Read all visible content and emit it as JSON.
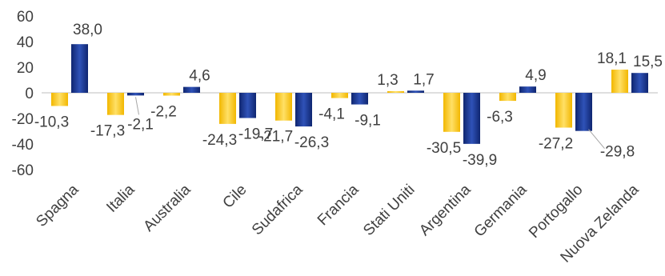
{
  "chart_data": {
    "type": "bar",
    "categories": [
      "Spagna",
      "Italia",
      "Australia",
      "Cile",
      "Sudafrica",
      "Francia",
      "Stati Uniti",
      "Argentina",
      "Germania",
      "Portogallo",
      "Nuova Zelanda"
    ],
    "series": [
      {
        "values": [
          -10.3,
          -17.3,
          -2.2,
          -24.3,
          -21.7,
          -4.1,
          1.3,
          -30.5,
          -6.3,
          -27.2,
          18.1
        ],
        "labels": [
          "-10,3",
          "-17,3",
          "-2,2",
          "-24,3",
          "-21,7",
          "-4,1",
          "1,3",
          "-30,5",
          "-6,3",
          "-27,2",
          "18,1"
        ],
        "color": "#FFD21F"
      },
      {
        "values": [
          38.0,
          -2.1,
          4.6,
          -19.7,
          -26.3,
          -9.1,
          1.7,
          -39.9,
          4.9,
          -29.8,
          15.5
        ],
        "labels": [
          "38,0",
          "-2,1",
          "4,6",
          "-19,7",
          "-26,3",
          "-9,1",
          "1,7",
          "-39,9",
          "4,9",
          "-29,8",
          "15,5"
        ],
        "color": "#1F3A93"
      }
    ],
    "y_ticks": [
      "60",
      "40",
      "20",
      "0",
      "-20",
      "-40",
      "-60"
    ],
    "ylim": [
      -60,
      60
    ],
    "grid": false,
    "legend": "none"
  }
}
